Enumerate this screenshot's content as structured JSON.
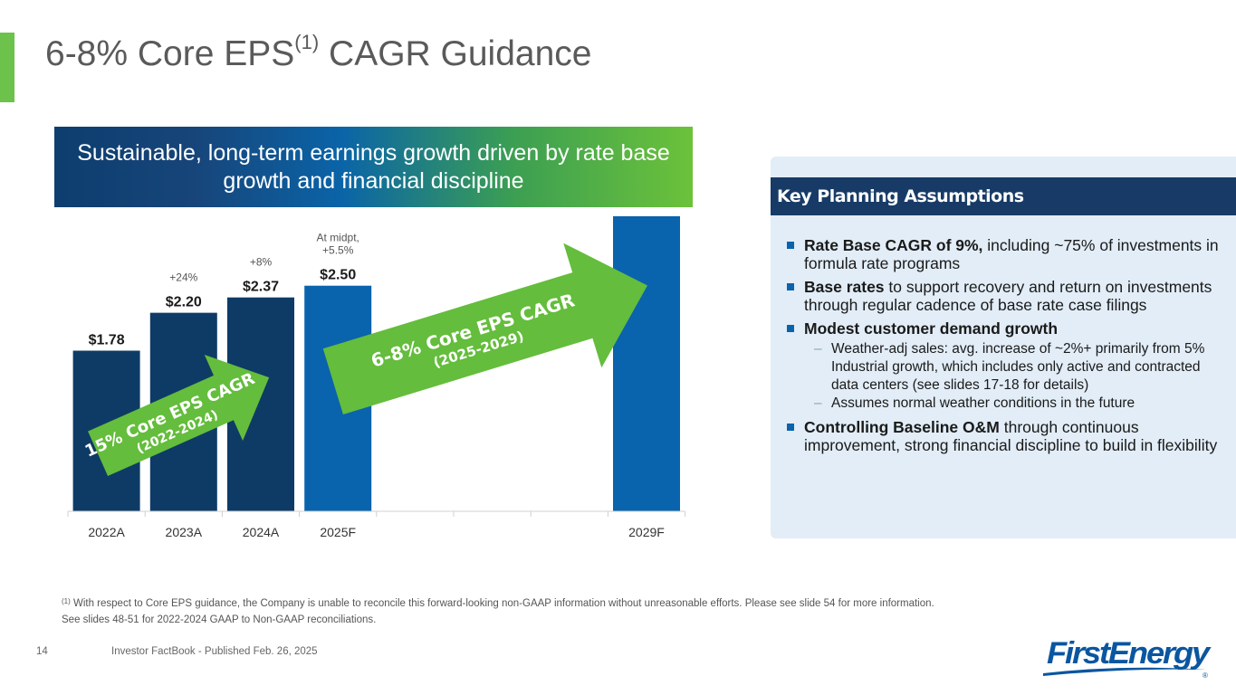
{
  "slide": {
    "title_main": "6-8% Core EPS",
    "title_sup": "(1)",
    "title_rest": " CAGR Guidance",
    "banner": "Sustainable, long-term earnings growth driven by rate base growth and financial discipline",
    "page_number": "14",
    "publication": "Investor FactBook - Published Feb. 26, 2025",
    "footnote_sup": "(1)",
    "footnote_line1": " With respect to Core EPS guidance, the Company is unable to reconcile this forward-looking non-GAAP information without unreasonable efforts. Please see slide 54 for more information.",
    "footnote_line2": "See slides 48-51 for 2022-2024 GAAP to Non-GAAP reconciliations.",
    "logo_text": "FirstEnergy",
    "logo_mark": "®"
  },
  "colors": {
    "actual_bar": "#0e3b66",
    "forecast_bar": "#0a63ad",
    "arrow_green": "#64bd3c",
    "accent_green": "#6cc24a"
  },
  "chart_data": {
    "type": "bar",
    "categories": [
      "2022A",
      "2023A",
      "2024A",
      "2025F",
      "",
      "",
      "",
      "2029F"
    ],
    "values": [
      1.78,
      2.2,
      2.37,
      2.5,
      null,
      null,
      null,
      3.27
    ],
    "value_labels": [
      "$1.78",
      "$2.20",
      "$2.37",
      "$2.50",
      "",
      "",
      "",
      ""
    ],
    "bar_kind": [
      "actual",
      "actual",
      "actual",
      "forecast",
      "none",
      "none",
      "none",
      "forecast"
    ],
    "growth_labels": [
      {
        "category": "2023A",
        "lines": [
          "+24%"
        ]
      },
      {
        "category": "2024A",
        "lines": [
          "+8%"
        ]
      },
      {
        "category": "2025F",
        "lines": [
          "At midpt,",
          "+5.5%"
        ]
      }
    ],
    "arrows": [
      {
        "line1": "15% Core EPS CAGR",
        "line2": "(2022-2024)"
      },
      {
        "line1": "6-8% Core EPS CAGR",
        "line2": "(2025-2029)"
      }
    ],
    "ylim": [
      0,
      3.5
    ],
    "grid": false,
    "legend": "none"
  },
  "panel": {
    "header": "Key Planning Assumptions",
    "bullets": [
      {
        "bold": "Rate Base CAGR of 9%,",
        "text": " including ~75% of investments in formula rate programs",
        "subs": []
      },
      {
        "bold": "Base rates",
        "text": " to support recovery and return on investments through regular cadence of base rate case filings",
        "subs": []
      },
      {
        "bold": "Modest customer demand growth",
        "text": "",
        "subs": [
          "Weather-adj sales: avg. increase of ~2%+ primarily from 5% Industrial growth, which includes only active and contracted data centers (see slides 17-18 for details)",
          "Assumes normal weather conditions in the future"
        ]
      },
      {
        "bold": "Controlling Baseline O&M",
        "text": " through continuous improvement, strong financial discipline to build in flexibility",
        "subs": []
      }
    ]
  }
}
